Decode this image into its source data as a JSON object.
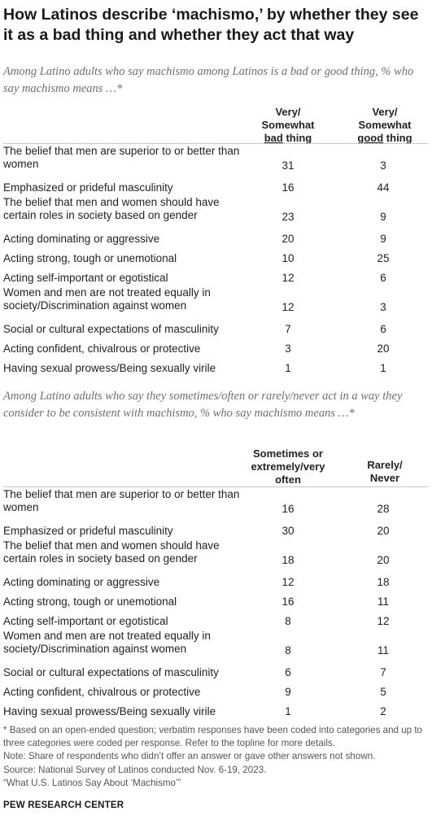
{
  "title_line1": "How Latinos describe ‘machismo,’ by whether they see",
  "title_line2": "it as a bad thing and whether they act that way",
  "table1": {
    "subtitle": "Among Latino adults who say machismo among Latinos is a bad or good thing, % who say machismo means …*",
    "col1": {
      "line1": "Very/",
      "line2": "Somewhat",
      "line3_underlined": "bad",
      "line3_rest": " thing"
    },
    "col2": {
      "line1": "Very/",
      "line2": "Somewhat",
      "line3_underlined": "good",
      "line3_rest": " thing"
    },
    "rows": [
      {
        "label": "The belief that men are superior to or better than women",
        "v1": "31",
        "v2": "3"
      },
      {
        "label": "Emphasized or prideful masculinity",
        "v1": "16",
        "v2": "44"
      },
      {
        "label": "The belief that men and women should have certain roles in society based on gender",
        "v1": "23",
        "v2": "9"
      },
      {
        "label": "Acting dominating or aggressive",
        "v1": "20",
        "v2": "9"
      },
      {
        "label": "Acting strong, tough or unemotional",
        "v1": "10",
        "v2": "25"
      },
      {
        "label": "Acting self-important or egotistical",
        "v1": "12",
        "v2": "6"
      },
      {
        "label": "Women and men are not treated equally in society/Discrimination against women",
        "v1": "12",
        "v2": "3"
      },
      {
        "label": "Social or cultural expectations of masculinity",
        "v1": "7",
        "v2": "6"
      },
      {
        "label": "Acting confident, chivalrous or protective",
        "v1": "3",
        "v2": "20"
      },
      {
        "label": "Having sexual prowess/Being sexually virile",
        "v1": "1",
        "v2": "1"
      }
    ]
  },
  "table2": {
    "subtitle": "Among Latino adults who say they sometimes/often or rarely/never act in a way they consider to be consistent with machismo, % who say machismo means …*",
    "col1": {
      "line1": "Sometimes or",
      "line2": "extremely/very",
      "line3": "often"
    },
    "col2": {
      "line1": "Rarely/",
      "line2": "Never"
    },
    "rows": [
      {
        "label": "The belief that men are superior to or better than women",
        "v1": "16",
        "v2": "28"
      },
      {
        "label": "Emphasized or prideful masculinity",
        "v1": "30",
        "v2": "20"
      },
      {
        "label": "The belief that men and women should have certain roles in society based on gender",
        "v1": "18",
        "v2": "20"
      },
      {
        "label": "Acting dominating or aggressive",
        "v1": "12",
        "v2": "18"
      },
      {
        "label": "Acting strong, tough or unemotional",
        "v1": "16",
        "v2": "11"
      },
      {
        "label": "Acting self-important or egotistical",
        "v1": "8",
        "v2": "12"
      },
      {
        "label": "Women and men are not treated equally in society/Discrimination against women",
        "v1": "8",
        "v2": "11"
      },
      {
        "label": "Social or cultural expectations of masculinity",
        "v1": "6",
        "v2": "7"
      },
      {
        "label": "Acting confident, chivalrous or protective",
        "v1": "9",
        "v2": "5"
      },
      {
        "label": "Having sexual prowess/Being sexually virile",
        "v1": "1",
        "v2": "2"
      }
    ]
  },
  "notes": {
    "line1": "* Based on an open-ended question; verbatim responses have been coded into categories and up to three categories were coded per response. Refer to the topline for more details.",
    "line2": "Note: Share of respondents who didn’t offer an answer or gave other answers not shown.",
    "line3": "Source: National Survey of Latinos conducted Nov. 6-19, 2023.",
    "line4": "“What U.S. Latinos Say About ‘Machismo’”"
  },
  "brand": "PEW RESEARCH CENTER",
  "chart_data": {
    "type": "table",
    "tables": [
      {
        "columns": [
          "Very/Somewhat bad thing",
          "Very/Somewhat good thing"
        ],
        "rows": [
          "The belief that men are superior to or better than women",
          "Emphasized or prideful masculinity",
          "The belief that men and women should have certain roles in society based on gender",
          "Acting dominating or aggressive",
          "Acting strong, tough or unemotional",
          "Acting self-important or egotistical",
          "Women and men are not treated equally in society/Discrimination against women",
          "Social or cultural expectations of masculinity",
          "Acting confident, chivalrous or protective",
          "Having sexual prowess/Being sexually virile"
        ],
        "values": [
          [
            31,
            3
          ],
          [
            16,
            44
          ],
          [
            23,
            9
          ],
          [
            20,
            9
          ],
          [
            10,
            25
          ],
          [
            12,
            6
          ],
          [
            12,
            3
          ],
          [
            7,
            6
          ],
          [
            3,
            20
          ],
          [
            1,
            1
          ]
        ]
      },
      {
        "columns": [
          "Sometimes or extremely/very often",
          "Rarely/Never"
        ],
        "rows": [
          "The belief that men are superior to or better than women",
          "Emphasized or prideful masculinity",
          "The belief that men and women should have certain roles in society based on gender",
          "Acting dominating or aggressive",
          "Acting strong, tough or unemotional",
          "Acting self-important or egotistical",
          "Women and men are not treated equally in society/Discrimination against women",
          "Social or cultural expectations of masculinity",
          "Acting confident, chivalrous or protective",
          "Having sexual prowess/Being sexually virile"
        ],
        "values": [
          [
            16,
            28
          ],
          [
            30,
            20
          ],
          [
            18,
            20
          ],
          [
            12,
            18
          ],
          [
            16,
            11
          ],
          [
            8,
            12
          ],
          [
            8,
            11
          ],
          [
            6,
            7
          ],
          [
            9,
            5
          ],
          [
            1,
            2
          ]
        ]
      }
    ]
  }
}
